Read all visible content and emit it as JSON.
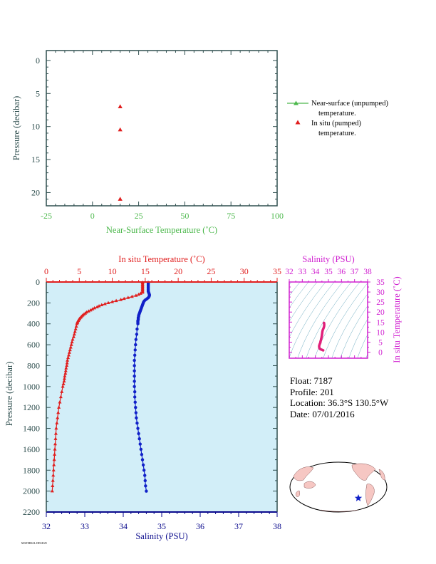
{
  "colors": {
    "green": "#4cb84c",
    "red": "#e01e1e",
    "blue": "#1020c8",
    "magenta": "#d020d0",
    "dark": "#2f4f4f",
    "navy": "#0a0a8c",
    "panel_bg": "#d2eef8",
    "ts_line": "#e0207a"
  },
  "info": {
    "float_label": "Float:",
    "float_value": "7187",
    "profile_label": "Profile:",
    "profile_value": "201",
    "location_label": "Location:",
    "location_value": "36.3°S  130.5°W",
    "date_label": "Date:",
    "date_value": "07/01/2016"
  },
  "legend": {
    "near_surface_1": "Near-surface (unpumped)",
    "near_surface_2": "temperature.",
    "in_situ_1": "In situ (pumped)",
    "in_situ_2": "temperature."
  },
  "footer_text": "MATERIAL DESIGN",
  "chart_data": [
    {
      "type": "scatter",
      "xlabel": "Near-Surface Temperature (˚C)",
      "ylabel": "Pressure (decibar)",
      "xlim": [
        -25,
        100
      ],
      "ylim": [
        22,
        -1.5
      ],
      "xticks": [
        "-25",
        "0",
        "25",
        "50",
        "75",
        "100"
      ],
      "yticks": [
        "0",
        "5",
        "10",
        "15",
        "20"
      ],
      "series": [
        {
          "name": "In situ (pumped) temperature.",
          "x": [
            15.0,
            15.0,
            15.0
          ],
          "y": [
            7.0,
            10.5,
            21.0
          ]
        }
      ]
    },
    {
      "type": "line",
      "xlabel": "Salinity (PSU)",
      "x2label": "In situ Temperature (˚C)",
      "ylabel": "Pressure (decibar)",
      "salinity_lim": [
        32,
        38
      ],
      "temp_lim": [
        0,
        35
      ],
      "ylim": [
        0,
        2200
      ],
      "yticks": [
        "0",
        "200",
        "400",
        "600",
        "800",
        "1000",
        "1200",
        "1400",
        "1600",
        "1800",
        "2000",
        "2200"
      ],
      "salinity_ticks": [
        "32",
        "33",
        "34",
        "35",
        "36",
        "37",
        "38"
      ],
      "temp_ticks": [
        "0",
        "5",
        "10",
        "15",
        "20",
        "25",
        "30",
        "35"
      ],
      "temperature_series": {
        "pressure": [
          5,
          10,
          20,
          30,
          40,
          50,
          60,
          70,
          80,
          90,
          100,
          110,
          120,
          130,
          140,
          150,
          160,
          170,
          180,
          190,
          200,
          210,
          220,
          230,
          240,
          250,
          260,
          270,
          280,
          290,
          300,
          310,
          320,
          330,
          340,
          350,
          360,
          370,
          380,
          390,
          400,
          425,
          450,
          475,
          500,
          525,
          550,
          575,
          600,
          625,
          650,
          675,
          700,
          725,
          750,
          775,
          800,
          825,
          850,
          875,
          900,
          925,
          950,
          975,
          1000,
          1050,
          1100,
          1150,
          1200,
          1250,
          1300,
          1350,
          1400,
          1450,
          1500,
          1550,
          1600,
          1650,
          1700,
          1750,
          1800,
          1850,
          1900,
          1950,
          2000
        ],
        "temperature": [
          14.6,
          14.6,
          14.6,
          14.6,
          14.6,
          14.6,
          14.6,
          14.6,
          14.6,
          14.6,
          14.6,
          14.3,
          14.0,
          13.6,
          13.0,
          12.4,
          11.8,
          11.3,
          10.6,
          10.0,
          9.4,
          8.9,
          8.4,
          8.0,
          7.7,
          7.3,
          7.0,
          6.7,
          6.4,
          6.1,
          5.9,
          5.7,
          5.5,
          5.35,
          5.2,
          5.05,
          4.95,
          4.85,
          4.75,
          4.7,
          4.65,
          4.55,
          4.45,
          4.35,
          4.25,
          4.15,
          4.0,
          3.9,
          3.8,
          3.7,
          3.6,
          3.5,
          3.4,
          3.3,
          3.2,
          3.15,
          3.1,
          3.0,
          2.95,
          2.9,
          2.8,
          2.75,
          2.7,
          2.6,
          2.5,
          2.35,
          2.2,
          2.05,
          1.9,
          1.8,
          1.7,
          1.6,
          1.5,
          1.45,
          1.4,
          1.35,
          1.3,
          1.25,
          1.2,
          1.15,
          1.1,
          1.05,
          1.0,
          0.95,
          0.9
        ]
      },
      "salinity_series": {
        "pressure": [
          5,
          10,
          20,
          30,
          40,
          50,
          60,
          70,
          80,
          90,
          100,
          110,
          120,
          130,
          140,
          150,
          160,
          170,
          180,
          190,
          200,
          210,
          220,
          230,
          240,
          250,
          260,
          270,
          280,
          290,
          300,
          310,
          320,
          330,
          340,
          350,
          360,
          370,
          380,
          390,
          400,
          450,
          500,
          550,
          600,
          650,
          700,
          750,
          800,
          850,
          900,
          950,
          1000,
          1050,
          1100,
          1150,
          1200,
          1250,
          1300,
          1350,
          1400,
          1450,
          1500,
          1550,
          1600,
          1650,
          1700,
          1750,
          1800,
          1850,
          1900,
          1950,
          2000
        ],
        "salinity": [
          34.65,
          34.65,
          34.65,
          34.65,
          34.65,
          34.65,
          34.65,
          34.65,
          34.65,
          34.65,
          34.66,
          34.67,
          34.68,
          34.68,
          34.67,
          34.65,
          34.62,
          34.58,
          34.55,
          34.53,
          34.52,
          34.51,
          34.5,
          34.49,
          34.48,
          34.47,
          34.46,
          34.45,
          34.44,
          34.43,
          34.42,
          34.41,
          34.4,
          34.4,
          34.39,
          34.39,
          34.39,
          34.38,
          34.38,
          34.38,
          34.38,
          34.36,
          34.35,
          34.33,
          34.32,
          34.31,
          34.3,
          34.29,
          34.29,
          34.29,
          34.29,
          34.29,
          34.29,
          34.3,
          34.3,
          34.31,
          34.32,
          34.33,
          34.34,
          34.36,
          34.38,
          34.4,
          34.42,
          34.44,
          34.46,
          34.48,
          34.5,
          34.52,
          34.54,
          34.56,
          34.57,
          34.58,
          34.6
        ]
      }
    },
    {
      "type": "line",
      "xlabel": "Salinity (PSU)",
      "ylabel": "In situ Temperature (˚C)",
      "xlim": [
        32,
        38
      ],
      "ylim": [
        -3,
        35
      ],
      "xticks": [
        "32",
        "33",
        "34",
        "35",
        "36",
        "37",
        "38"
      ],
      "yticks": [
        "0",
        "5",
        "10",
        "15",
        "20",
        "25",
        "30",
        "35"
      ]
    }
  ]
}
